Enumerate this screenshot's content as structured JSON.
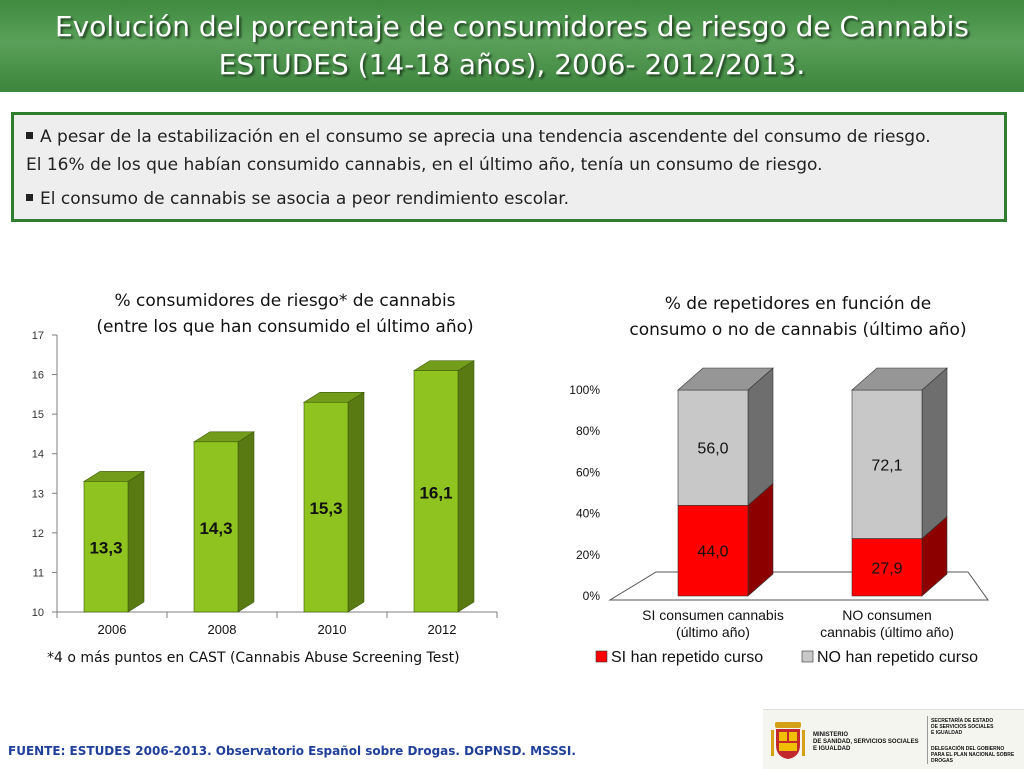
{
  "header": {
    "title_line1": "Evolución del porcentaje de consumidores de riesgo de Cannabis",
    "title_line2": "ESTUDES (14-18 años), 2006- 2012/2013."
  },
  "notes": {
    "bullet1_line1": "A pesar de la estabilización en el consumo se aprecia una tendencia ascendente del consumo de riesgo.",
    "bullet1_line2": "El 16% de los que habían consumido cannabis, en el último año, tenía un consumo de riesgo.",
    "bullet2": "El consumo de cannabis se asocia a peor rendimiento escolar."
  },
  "chart_data": [
    {
      "type": "bar",
      "title": "% consumidores de riesgo* de cannabis (entre los que han consumido el último año)",
      "title_line1": "% consumidores de riesgo* de cannabis",
      "title_line2": "(entre los que han consumido el último año)",
      "categories": [
        "2006",
        "2008",
        "2010",
        "2012"
      ],
      "values": [
        13.3,
        14.3,
        15.3,
        16.1
      ],
      "value_labels": [
        "13,3",
        "14,3",
        "15,3",
        "16,1"
      ],
      "ylim": [
        10,
        17
      ],
      "yticks": [
        "10",
        "11",
        "12",
        "13",
        "14",
        "15",
        "16",
        "17"
      ],
      "footnote": "*4 o más puntos en CAST (Cannabis Abuse Screening Test)",
      "bar_color": "#8fc31f"
    },
    {
      "type": "bar",
      "stacked": true,
      "title": "% de repetidores en función de consumo o no de cannabis (último año)",
      "title_line1": "% de repetidores en función de",
      "title_line2": "consumo o no de cannabis (último año)",
      "categories": [
        {
          "line1": "SI consumen cannabis",
          "line2": "(último año)"
        },
        {
          "line1": "NO consumen",
          "line2": "cannabis (último año)"
        }
      ],
      "series": [
        {
          "name": "SI han repetido curso",
          "values": [
            44.0,
            27.9
          ],
          "labels": [
            "44,0",
            "27,9"
          ],
          "color": "#ff0000"
        },
        {
          "name": "NO han repetido curso",
          "values": [
            56.0,
            72.1
          ],
          "labels": [
            "56,0",
            "72,1"
          ],
          "color": "#c8c8c8"
        }
      ],
      "ylim": [
        0,
        100
      ],
      "yticks": [
        "0%",
        "20%",
        "40%",
        "60%",
        "80%",
        "100%"
      ],
      "legend": "bottom"
    }
  ],
  "source": "FUENTE: ESTUDES 2006-2013. Observatorio Español sobre Drogas. DGPNSD. MSSSI.",
  "logo": {
    "ministry_line1": "MINISTERIO",
    "ministry_line2": "DE SANIDAD, SERVICIOS SOCIALES",
    "ministry_line3": "E IGUALDAD",
    "secretaria_line1": "SECRETARÍA DE ESTADO",
    "secretaria_line2": "DE SERVICIOS SOCIALES",
    "secretaria_line3": "E IGUALDAD",
    "delegacion_line1": "DELEGACIÓN DEL GOBIERNO",
    "delegacion_line2": "PARA EL PLAN NACIONAL SOBRE DROGAS"
  }
}
